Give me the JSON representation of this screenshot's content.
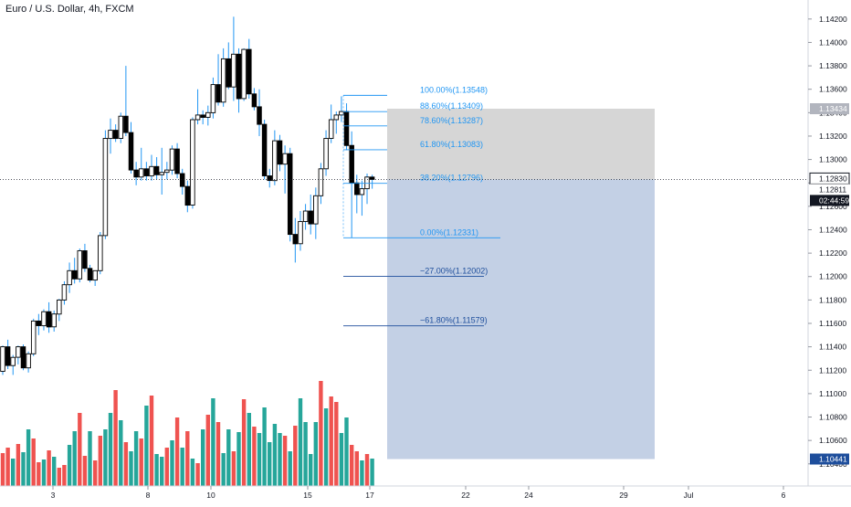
{
  "header": {
    "symbol_title": "Euro / U.S. Dollar, 4h, FXCM"
  },
  "colors": {
    "bull_candle": "#ffffff",
    "bear_candle": "#000000",
    "wick": "#2196f3",
    "volume_up": "#26a69a",
    "volume_down": "#ef5350",
    "fib_text": "#2196f3",
    "fib_ext_text": "#1e4e9c",
    "zone_gray": "#c8c8c8",
    "zone_blue": "#b4c4de",
    "axis_text": "#131722",
    "badge_dark": "#131722",
    "badge_blue": "#1e4e9c"
  },
  "price_axis": {
    "ticks": [
      "1.14200",
      "1.14000",
      "1.13800",
      "1.13600",
      "1.13400",
      "1.13200",
      "1.13000",
      "1.12800",
      "1.12600",
      "1.12400",
      "1.12200",
      "1.12000",
      "1.11800",
      "1.11600",
      "1.11400",
      "1.11200",
      "1.11000",
      "1.10800",
      "1.10600",
      "1.10400"
    ],
    "badges": {
      "target_price": "1.13434",
      "current_price": "1.12830",
      "price_2": "1.12811",
      "countdown": "02:44:59",
      "stop_price": "1.10441"
    }
  },
  "time_axis": {
    "labels": [
      "3",
      "8",
      "10",
      "15",
      "17",
      "22",
      "24",
      "29",
      "Jul",
      "6"
    ]
  },
  "fib_levels": [
    {
      "label": "100.00%(1.13548)",
      "price": 1.13548,
      "ratio": 1.0
    },
    {
      "label": "88.60%(1.13409)",
      "price": 1.13409,
      "ratio": 0.886
    },
    {
      "label": "78.60%(1.13287)",
      "price": 1.13287,
      "ratio": 0.786
    },
    {
      "label": "61.80%(1.13083)",
      "price": 1.13083,
      "ratio": 0.618
    },
    {
      "label": "38.20%(1.12796)",
      "price": 1.12796,
      "ratio": 0.382
    },
    {
      "label": "0.00%(1.12331)",
      "price": 1.12331,
      "ratio": 0.0
    },
    {
      "label": "−27.00%(1.12002)",
      "price": 1.12002,
      "ratio": -0.27
    },
    {
      "label": "−61.80%(1.11579)",
      "price": 1.11579,
      "ratio": -0.618
    }
  ],
  "position": {
    "entry": 1.1283,
    "target": 1.13434,
    "stop": 1.10441
  },
  "chart_data": {
    "type": "candlestick",
    "title": "Euro / U.S. Dollar, 4h, FXCM",
    "ylim": [
      1.1025,
      1.143
    ],
    "candles": [
      [
        1.1119,
        1.1141,
        1.1116,
        1.114
      ],
      [
        1.114,
        1.1146,
        1.1121,
        1.1124
      ],
      [
        1.1124,
        1.1133,
        1.1116,
        1.1131
      ],
      [
        1.1131,
        1.1141,
        1.1125,
        1.114
      ],
      [
        1.114,
        1.1142,
        1.112,
        1.1122
      ],
      [
        1.1122,
        1.1136,
        1.1118,
        1.1134
      ],
      [
        1.1134,
        1.1164,
        1.1132,
        1.1162
      ],
      [
        1.1162,
        1.1168,
        1.115,
        1.1158
      ],
      [
        1.1158,
        1.1172,
        1.1154,
        1.117
      ],
      [
        1.117,
        1.1178,
        1.1152,
        1.1157
      ],
      [
        1.1157,
        1.1171,
        1.1153,
        1.1168
      ],
      [
        1.1168,
        1.1181,
        1.1162,
        1.118
      ],
      [
        1.118,
        1.1196,
        1.1176,
        1.1193
      ],
      [
        1.1193,
        1.1212,
        1.1186,
        1.1205
      ],
      [
        1.1205,
        1.1216,
        1.1194,
        1.1198
      ],
      [
        1.1198,
        1.1224,
        1.1195,
        1.1222
      ],
      [
        1.1222,
        1.1228,
        1.1204,
        1.1207
      ],
      [
        1.1207,
        1.121,
        1.1195,
        1.1197
      ],
      [
        1.1197,
        1.1204,
        1.1192,
        1.1205
      ],
      [
        1.1205,
        1.1238,
        1.1202,
        1.1235
      ],
      [
        1.1235,
        1.1325,
        1.1232,
        1.1318
      ],
      [
        1.1318,
        1.1335,
        1.1305,
        1.1325
      ],
      [
        1.1325,
        1.133,
        1.1315,
        1.1318
      ],
      [
        1.1318,
        1.134,
        1.1314,
        1.1337
      ],
      [
        1.1337,
        1.138,
        1.132,
        1.1323
      ],
      [
        1.1323,
        1.1332,
        1.1288,
        1.1291
      ],
      [
        1.1291,
        1.1298,
        1.1278,
        1.1285
      ],
      [
        1.1285,
        1.131,
        1.1282,
        1.1292
      ],
      [
        1.1292,
        1.1298,
        1.1282,
        1.1286
      ],
      [
        1.1286,
        1.1304,
        1.1282,
        1.1294
      ],
      [
        1.1294,
        1.1302,
        1.1283,
        1.1287
      ],
      [
        1.1287,
        1.131,
        1.127,
        1.1289
      ],
      [
        1.1289,
        1.1298,
        1.1283,
        1.1291
      ],
      [
        1.1291,
        1.1312,
        1.1287,
        1.1309
      ],
      [
        1.1309,
        1.1314,
        1.1284,
        1.1288
      ],
      [
        1.1288,
        1.1292,
        1.127,
        1.1277
      ],
      [
        1.1277,
        1.1282,
        1.1255,
        1.1261
      ],
      [
        1.1261,
        1.1336,
        1.1258,
        1.1334
      ],
      [
        1.1334,
        1.136,
        1.133,
        1.1338
      ],
      [
        1.1338,
        1.1342,
        1.133,
        1.1336
      ],
      [
        1.1336,
        1.1346,
        1.1329,
        1.134
      ],
      [
        1.134,
        1.137,
        1.1335,
        1.1364
      ],
      [
        1.1364,
        1.139,
        1.1346,
        1.1349
      ],
      [
        1.1349,
        1.1395,
        1.1345,
        1.1386
      ],
      [
        1.1386,
        1.14,
        1.136,
        1.1362
      ],
      [
        1.1362,
        1.1422,
        1.135,
        1.139
      ],
      [
        1.139,
        1.1395,
        1.134,
        1.1352
      ],
      [
        1.1352,
        1.1395,
        1.135,
        1.1394
      ],
      [
        1.1394,
        1.1403,
        1.1352,
        1.1356
      ],
      [
        1.1356,
        1.1361,
        1.1342,
        1.1345
      ],
      [
        1.1345,
        1.136,
        1.132,
        1.133
      ],
      [
        1.133,
        1.1334,
        1.1283,
        1.1286
      ],
      [
        1.1286,
        1.1292,
        1.1276,
        1.1282
      ],
      [
        1.1282,
        1.1325,
        1.1278,
        1.1316
      ],
      [
        1.1316,
        1.1321,
        1.129,
        1.1296
      ],
      [
        1.1296,
        1.1312,
        1.1271,
        1.1305
      ],
      [
        1.1305,
        1.131,
        1.123,
        1.1236
      ],
      [
        1.1236,
        1.125,
        1.1212,
        1.1228
      ],
      [
        1.1228,
        1.1256,
        1.1222,
        1.1247
      ],
      [
        1.1247,
        1.1262,
        1.124,
        1.1256
      ],
      [
        1.1256,
        1.127,
        1.1236,
        1.1245
      ],
      [
        1.1245,
        1.1276,
        1.1232,
        1.1269
      ],
      [
        1.1269,
        1.1297,
        1.1262,
        1.1292
      ],
      [
        1.1292,
        1.1325,
        1.1286,
        1.1318
      ],
      [
        1.1318,
        1.1347,
        1.1314,
        1.1334
      ],
      [
        1.1334,
        1.1341,
        1.1322,
        1.1338
      ],
      [
        1.1338,
        1.1354,
        1.1332,
        1.1341
      ],
      [
        1.1341,
        1.1348,
        1.1308,
        1.1312
      ],
      [
        1.1312,
        1.1324,
        1.1233,
        1.128
      ],
      [
        1.128,
        1.1287,
        1.1254,
        1.127
      ],
      [
        1.127,
        1.1282,
        1.1252,
        1.1275
      ],
      [
        1.1275,
        1.1288,
        1.1262,
        1.1285
      ],
      [
        1.1285,
        1.1287,
        1.1275,
        1.1283
      ]
    ],
    "volumes": [
      [
        36,
        -1
      ],
      [
        42,
        -1
      ],
      [
        30,
        1
      ],
      [
        46,
        -1
      ],
      [
        37,
        1
      ],
      [
        62,
        1
      ],
      [
        52,
        -1
      ],
      [
        26,
        -1
      ],
      [
        29,
        1
      ],
      [
        39,
        -1
      ],
      [
        32,
        1
      ],
      [
        20,
        -1
      ],
      [
        23,
        -1
      ],
      [
        45,
        1
      ],
      [
        60,
        1
      ],
      [
        80,
        -1
      ],
      [
        33,
        -1
      ],
      [
        60,
        1
      ],
      [
        28,
        -1
      ],
      [
        55,
        -1
      ],
      [
        62,
        1
      ],
      [
        80,
        1
      ],
      [
        105,
        -1
      ],
      [
        72,
        1
      ],
      [
        48,
        -1
      ],
      [
        38,
        1
      ],
      [
        60,
        1
      ],
      [
        52,
        -1
      ],
      [
        88,
        1
      ],
      [
        99,
        -1
      ],
      [
        35,
        1
      ],
      [
        32,
        1
      ],
      [
        42,
        -1
      ],
      [
        50,
        1
      ],
      [
        75,
        -1
      ],
      [
        42,
        1
      ],
      [
        60,
        -1
      ],
      [
        30,
        1
      ],
      [
        25,
        -1
      ],
      [
        62,
        1
      ],
      [
        78,
        -1
      ],
      [
        96,
        1
      ],
      [
        70,
        -1
      ],
      [
        36,
        1
      ],
      [
        62,
        1
      ],
      [
        38,
        -1
      ],
      [
        59,
        1
      ],
      [
        95,
        -1
      ],
      [
        80,
        1
      ],
      [
        65,
        -1
      ],
      [
        58,
        1
      ],
      [
        86,
        1
      ],
      [
        48,
        1
      ],
      [
        68,
        1
      ],
      [
        58,
        1
      ],
      [
        55,
        -1
      ],
      [
        38,
        1
      ],
      [
        66,
        -1
      ],
      [
        96,
        1
      ],
      [
        70,
        1
      ],
      [
        35,
        1
      ],
      [
        70,
        1
      ],
      [
        115,
        -1
      ],
      [
        85,
        1
      ],
      [
        98,
        -1
      ],
      [
        92,
        -1
      ],
      [
        58,
        1
      ],
      [
        75,
        1
      ],
      [
        45,
        -1
      ],
      [
        38,
        -1
      ],
      [
        28,
        1
      ],
      [
        35,
        -1
      ],
      [
        30,
        1
      ]
    ]
  }
}
